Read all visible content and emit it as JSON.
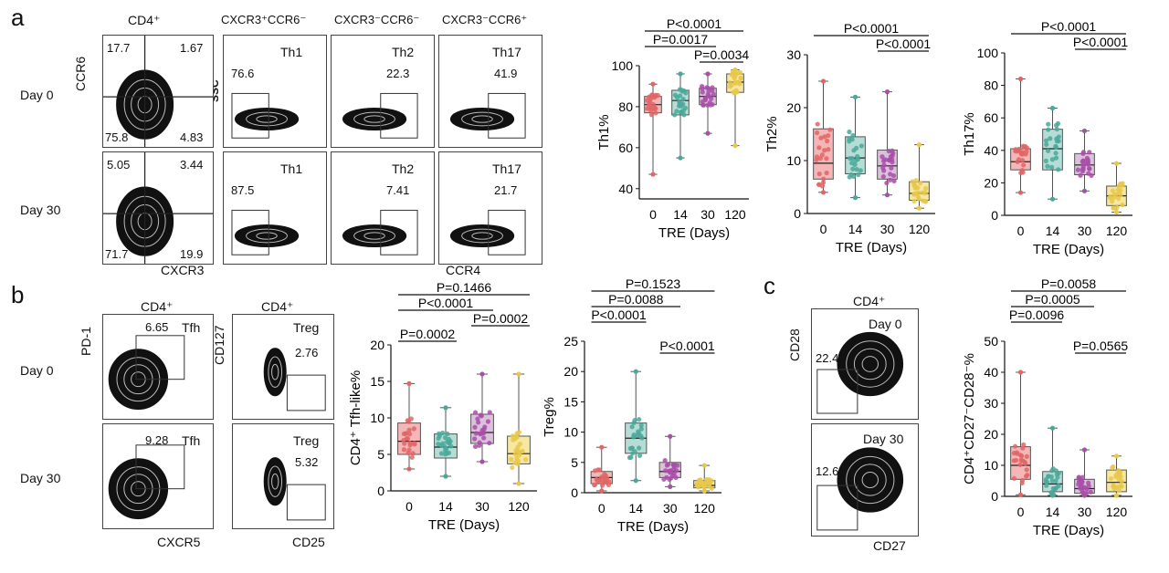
{
  "panels": {
    "a": {
      "label": "a",
      "parent_gate": "CD4⁺",
      "subset_headers": [
        "CXCR3⁺CCR6⁻",
        "CXCR3⁻CCR6⁻",
        "CXCR3⁻CCR6⁺"
      ],
      "row_labels": [
        "Day 0",
        "Day 30"
      ],
      "x_axis": "CXCR3",
      "y_axis": "CCR6",
      "ssc_label": "SSC",
      "ccr4_label": "CCR4",
      "quadrants": [
        {
          "tl": "17.7",
          "tr": "1.67",
          "bl": "75.8",
          "br": "4.83"
        },
        {
          "tl": "5.05",
          "tr": "3.44",
          "bl": "71.7",
          "br": "19.9"
        }
      ],
      "subset_names": [
        "Th1",
        "Th2",
        "Th17"
      ],
      "subset_values": [
        [
          "76.6",
          "22.3",
          "41.9"
        ],
        [
          "87.5",
          "7.41",
          "21.7"
        ]
      ]
    },
    "b": {
      "label": "b",
      "parent_gate": "CD4⁺",
      "row_labels": [
        "Day 0",
        "Day 30"
      ],
      "tfh_x": "CXCR5",
      "tfh_y": "PD-1",
      "tfh_name": "Tfh",
      "tfh_values": [
        "6.65",
        "9.28"
      ],
      "treg_x": "CD25",
      "treg_y": "CD127",
      "treg_name": "Treg",
      "treg_values": [
        "2.76",
        "5.32"
      ]
    },
    "c": {
      "label": "c",
      "parent_gate": "CD4⁺",
      "row_labels": [
        "Day 0",
        "Day 30"
      ],
      "x_axis": "CD27",
      "y_axis": "CD28",
      "values": [
        "22.4",
        "12.6"
      ]
    }
  },
  "chart_data": [
    {
      "type": "box",
      "id": "th1",
      "ylabel": "Th1%",
      "xlabel": "TRE (Days)",
      "categories": [
        "0",
        "14",
        "30",
        "120"
      ],
      "ylim": [
        35,
        100
      ],
      "yticks": [
        40,
        60,
        80,
        100
      ],
      "colors": [
        "#e06666",
        "#4aa89a",
        "#a84fa8",
        "#e8c84a"
      ],
      "fills": [
        "#f4b6b6",
        "#b5ddd6",
        "#dcc0dc",
        "#f6e7a2"
      ],
      "boxes": [
        {
          "min": 47,
          "q1": 77,
          "median": 81,
          "q3": 85,
          "max": 91
        },
        {
          "min": 55,
          "q1": 76,
          "median": 83,
          "q3": 88,
          "max": 96
        },
        {
          "min": 67,
          "q1": 81,
          "median": 85,
          "q3": 89,
          "max": 96
        },
        {
          "min": 61,
          "q1": 87,
          "median": 92,
          "q3": 96,
          "max": 98
        }
      ],
      "comparisons": [
        {
          "from": 0,
          "to": 3,
          "label": "P<0.0001"
        },
        {
          "from": 0,
          "to": 2,
          "label": "P=0.0017"
        },
        {
          "from": 2,
          "to": 3,
          "label": "P=0.0034"
        }
      ]
    },
    {
      "type": "box",
      "id": "th2",
      "ylabel": "Th2%",
      "xlabel": "TRE (Days)",
      "categories": [
        "0",
        "14",
        "30",
        "120"
      ],
      "ylim": [
        0,
        30
      ],
      "yticks": [
        0,
        10,
        20,
        30
      ],
      "colors": [
        "#e06666",
        "#4aa89a",
        "#a84fa8",
        "#e8c84a"
      ],
      "fills": [
        "#f4b6b6",
        "#b5ddd6",
        "#dcc0dc",
        "#f6e7a2"
      ],
      "boxes": [
        {
          "min": 4,
          "q1": 6.5,
          "median": 9.5,
          "q3": 16,
          "max": 25
        },
        {
          "min": 3,
          "q1": 7.5,
          "median": 10.5,
          "q3": 14.5,
          "max": 22
        },
        {
          "min": 3.5,
          "q1": 6.5,
          "median": 9,
          "q3": 12,
          "max": 23
        },
        {
          "min": 1,
          "q1": 2.5,
          "median": 3.8,
          "q3": 6,
          "max": 13
        }
      ],
      "comparisons": [
        {
          "from": 0,
          "to": 3,
          "label": "P<0.0001"
        },
        {
          "from": 2,
          "to": 3,
          "label": "P<0.0001"
        }
      ]
    },
    {
      "type": "box",
      "id": "th17",
      "ylabel": "Th17%",
      "xlabel": "TRE (Days)",
      "categories": [
        "0",
        "14",
        "30",
        "120"
      ],
      "ylim": [
        0,
        100
      ],
      "yticks": [
        0,
        20,
        40,
        60,
        80,
        100
      ],
      "colors": [
        "#e06666",
        "#4aa89a",
        "#a84fa8",
        "#e8c84a"
      ],
      "fills": [
        "#f4b6b6",
        "#b5ddd6",
        "#dcc0dc",
        "#f6e7a2"
      ],
      "boxes": [
        {
          "min": 14,
          "q1": 28,
          "median": 33,
          "q3": 41,
          "max": 84
        },
        {
          "min": 10,
          "q1": 28,
          "median": 41,
          "q3": 53,
          "max": 66
        },
        {
          "min": 15,
          "q1": 25,
          "median": 31,
          "q3": 38,
          "max": 52
        },
        {
          "min": 2,
          "q1": 6,
          "median": 12,
          "q3": 18,
          "max": 32
        }
      ],
      "comparisons": [
        {
          "from": 0,
          "to": 3,
          "label": "P<0.0001"
        },
        {
          "from": 2,
          "to": 3,
          "label": "P<0.0001"
        }
      ]
    },
    {
      "type": "box",
      "id": "tfh",
      "ylabel": "CD4⁺ Tfh-like%",
      "xlabel": "TRE (Days)",
      "categories": [
        "0",
        "14",
        "30",
        "120"
      ],
      "ylim": [
        0,
        20
      ],
      "yticks": [
        0,
        5,
        10,
        15,
        20
      ],
      "colors": [
        "#e06666",
        "#4aa89a",
        "#a84fa8",
        "#e8c84a"
      ],
      "fills": [
        "#f4b6b6",
        "#b5ddd6",
        "#dcc0dc",
        "#f6e7a2"
      ],
      "boxes": [
        {
          "min": 3,
          "q1": 5,
          "median": 6.8,
          "q3": 9.3,
          "max": 14.7
        },
        {
          "min": 2,
          "q1": 4.5,
          "median": 6,
          "q3": 7.8,
          "max": 11.4
        },
        {
          "min": 4,
          "q1": 6.5,
          "median": 8,
          "q3": 10.5,
          "max": 16
        },
        {
          "min": 1,
          "q1": 3.7,
          "median": 5.1,
          "q3": 7.5,
          "max": 16
        }
      ],
      "comparisons": [
        {
          "from": 0,
          "to": 3,
          "label": "P=0.1466"
        },
        {
          "from": 0,
          "to": 2,
          "label": "P<0.0001"
        },
        {
          "from": 2,
          "to": 3,
          "label": "P=0.0002"
        },
        {
          "from": 0,
          "to": 1,
          "label": "P=0.0002"
        }
      ]
    },
    {
      "type": "box",
      "id": "treg",
      "ylabel": "Treg%",
      "xlabel": "TRE (Days)",
      "categories": [
        "0",
        "14",
        "30",
        "120"
      ],
      "ylim": [
        0,
        25
      ],
      "yticks": [
        0,
        5,
        10,
        15,
        20,
        25
      ],
      "colors": [
        "#e06666",
        "#4aa89a",
        "#a84fa8",
        "#e8c84a"
      ],
      "fills": [
        "#f4b6b6",
        "#b5ddd6",
        "#dcc0dc",
        "#f6e7a2"
      ],
      "boxes": [
        {
          "min": 0.3,
          "q1": 1.5,
          "median": 2.5,
          "q3": 3.5,
          "max": 7.5
        },
        {
          "min": 2,
          "q1": 6.5,
          "median": 9,
          "q3": 11.5,
          "max": 20
        },
        {
          "min": 1,
          "q1": 2.5,
          "median": 3.5,
          "q3": 5,
          "max": 9.3
        },
        {
          "min": 0.3,
          "q1": 0.8,
          "median": 1.2,
          "q3": 2,
          "max": 4.5
        }
      ],
      "comparisons": [
        {
          "from": 0,
          "to": 3,
          "label": "P=0.1523"
        },
        {
          "from": 0,
          "to": 2,
          "label": "P=0.0088"
        },
        {
          "from": 0,
          "to": 1,
          "label": "P<0.0001"
        },
        {
          "from": 2,
          "to": 3,
          "label": "P<0.0001"
        }
      ]
    },
    {
      "type": "box",
      "id": "cd27cd28",
      "ylabel": "CD4⁺CD27⁻CD28⁻%",
      "xlabel": "TRE (Days)",
      "categories": [
        "0",
        "14",
        "30",
        "120"
      ],
      "ylim": [
        0,
        50
      ],
      "yticks": [
        0,
        10,
        20,
        30,
        40,
        50
      ],
      "colors": [
        "#e06666",
        "#4aa89a",
        "#a84fa8",
        "#e8c84a"
      ],
      "fills": [
        "#f4b6b6",
        "#b5ddd6",
        "#dcc0dc",
        "#f6e7a2"
      ],
      "boxes": [
        {
          "min": 0.5,
          "q1": 5.5,
          "median": 10,
          "q3": 16,
          "max": 40
        },
        {
          "min": 0.3,
          "q1": 1.5,
          "median": 4,
          "q3": 8,
          "max": 22
        },
        {
          "min": 0.3,
          "q1": 1,
          "median": 2.5,
          "q3": 5.5,
          "max": 15
        },
        {
          "min": 0.3,
          "q1": 1.5,
          "median": 4.5,
          "q3": 8.5,
          "max": 13
        }
      ],
      "comparisons": [
        {
          "from": 0,
          "to": 3,
          "label": "P=0.0058"
        },
        {
          "from": 0,
          "to": 2,
          "label": "P=0.0005"
        },
        {
          "from": 0,
          "to": 1,
          "label": "P=0.0096"
        },
        {
          "from": 2,
          "to": 3,
          "label": "P=0.0565"
        }
      ]
    }
  ]
}
